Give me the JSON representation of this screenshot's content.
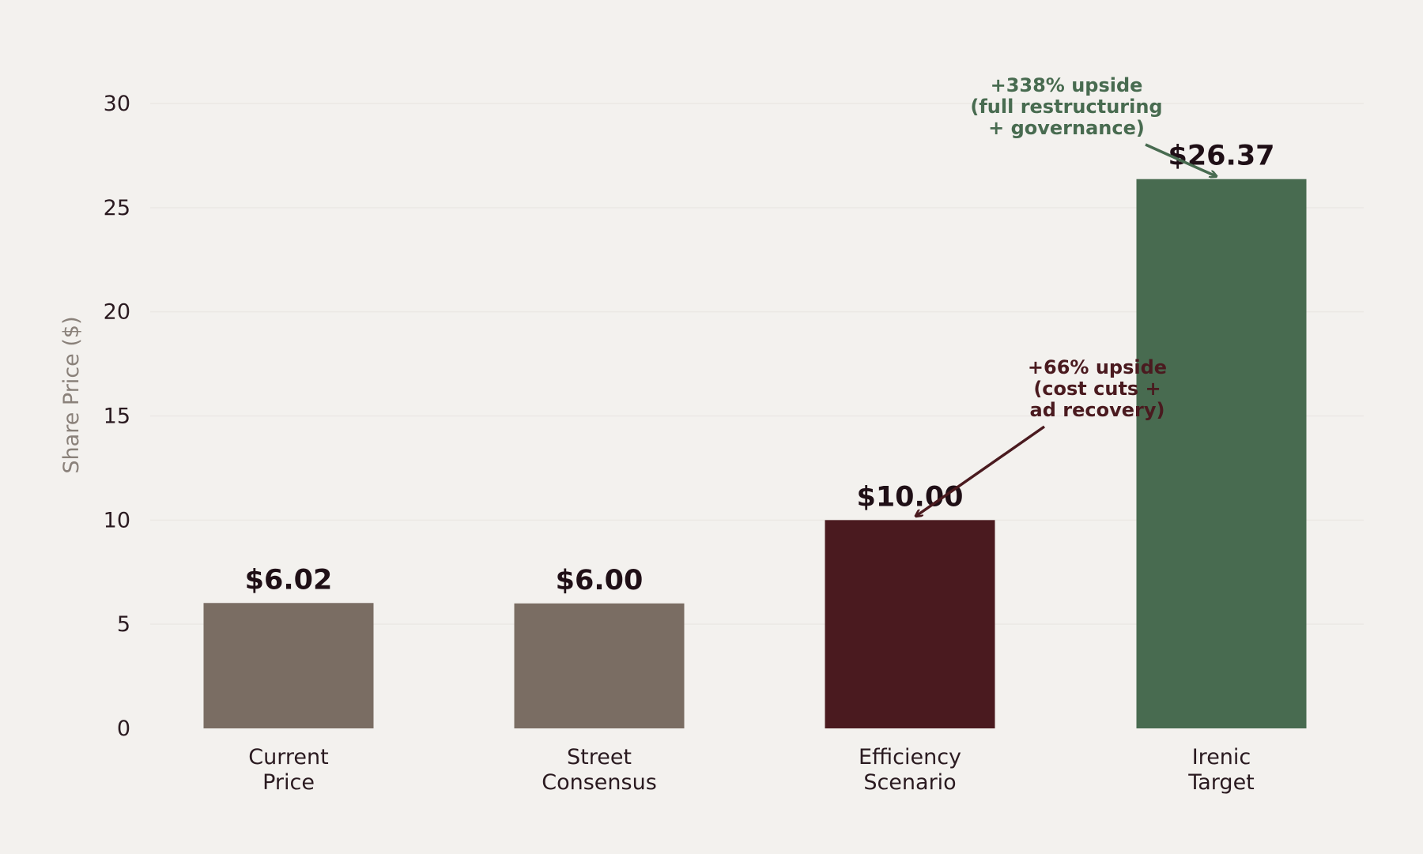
{
  "chart_data": {
    "type": "bar",
    "categories": [
      "Current\nPrice",
      "Street\nConsensus",
      "Efficiency\nScenario",
      "Irenic\nTarget"
    ],
    "values": [
      6.02,
      6.0,
      10.0,
      26.37
    ],
    "value_labels": [
      "$6.02",
      "$6.00",
      "$10.00",
      "$26.37"
    ],
    "bar_colors": [
      "#7a6d63",
      "#7a6d63",
      "#4a1a1f",
      "#486b50"
    ],
    "title": "",
    "xlabel": "",
    "ylabel": "Share Price ($)",
    "ylim": [
      0,
      32
    ],
    "yticks": [
      0,
      5,
      10,
      15,
      20,
      25,
      30
    ],
    "grid": true,
    "legend": "none",
    "annotations": [
      {
        "text": "+66% upside\n(cost cuts +\nad recovery)",
        "target_category": 2,
        "target_value": 10.0,
        "color": "#4a1a1f"
      },
      {
        "text": "+338% upside\n(full restructuring\n+ governance)",
        "target_category": 3,
        "target_value": 26.37,
        "color": "#486b50"
      }
    ]
  },
  "colors": {
    "background": "#f3f1ee",
    "gridline": "#ebe8e4",
    "text": "#2a1a20",
    "axis_title": "#8a817a"
  }
}
